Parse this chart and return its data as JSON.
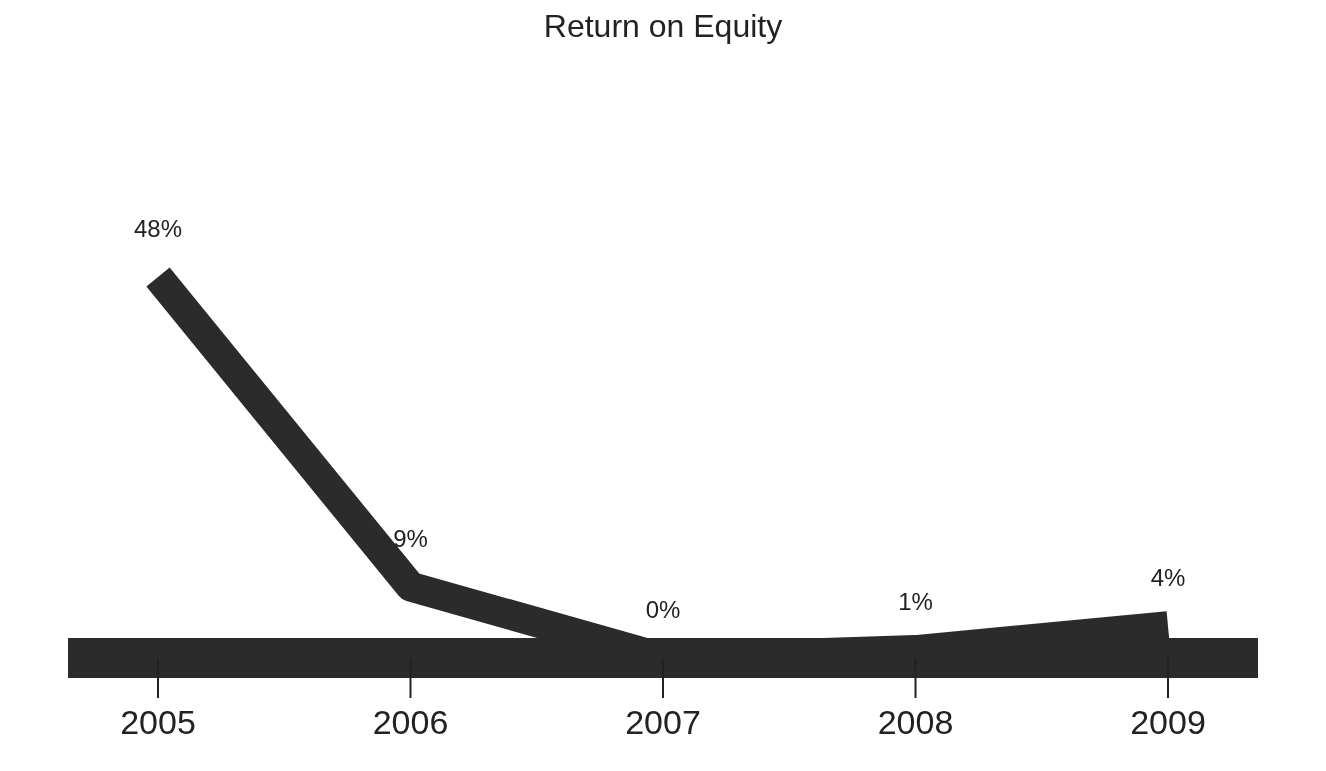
{
  "chart_data": {
    "type": "line",
    "title": "Return on Equity",
    "categories": [
      "2005",
      "2006",
      "2007",
      "2008",
      "2009"
    ],
    "series": [
      {
        "color": "#2b2b2b",
        "values": [
          48,
          9,
          0,
          1,
          4
        ],
        "value_labels": [
          "48%",
          "9%",
          "0%",
          "1%",
          "4%"
        ]
      }
    ],
    "marker": "none",
    "grid": false
  }
}
